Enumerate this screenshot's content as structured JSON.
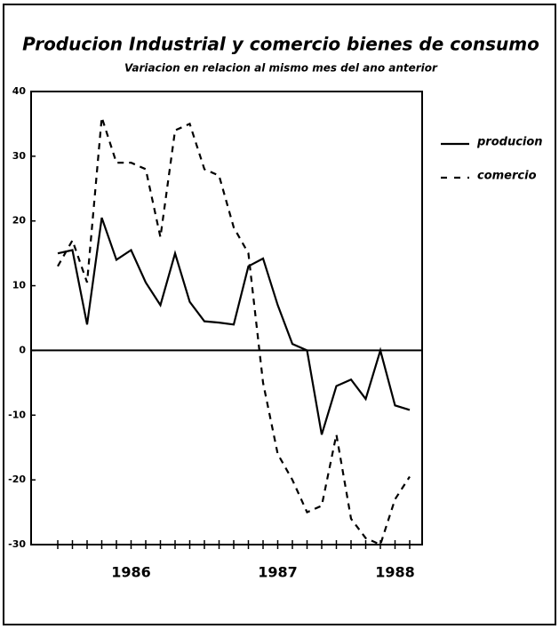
{
  "chart_data": {
    "type": "line",
    "title": "Producion Industrial y comercio bienes de consumo",
    "subtitle": "Variacion en relacion al mismo mes del ano anterior",
    "categories": [
      null,
      null,
      null,
      null,
      null,
      "1986",
      null,
      null,
      null,
      null,
      null,
      null,
      null,
      null,
      null,
      "1987",
      null,
      null,
      null,
      null,
      null,
      null,
      null,
      "1988",
      null
    ],
    "series": [
      {
        "name": "producion",
        "color": "#000000",
        "dash": false,
        "values": [
          15,
          15.5,
          4,
          20.5,
          14,
          15.5,
          10.5,
          7,
          15,
          7.5,
          4.5,
          4.3,
          4,
          13,
          14.2,
          7,
          1,
          0,
          -13,
          -5.5,
          -4.5,
          -7.5,
          0,
          -8.5,
          -9.2
        ]
      },
      {
        "name": "comercio",
        "color": "#000000",
        "dash": true,
        "values": [
          13,
          17,
          10.5,
          36,
          29,
          29,
          28,
          17.5,
          34,
          35,
          28,
          27,
          19,
          15,
          -5,
          -16,
          -20,
          -25,
          -24,
          -13,
          -26,
          -29,
          -30,
          -23,
          -19.5
        ]
      }
    ],
    "ylim": [
      -30,
      40
    ],
    "yticks": [
      -30,
      -20,
      -10,
      0,
      10,
      20,
      30,
      40
    ]
  }
}
